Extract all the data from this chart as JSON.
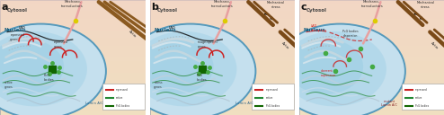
{
  "panels": [
    "a",
    "b",
    "c"
  ],
  "fig_bg": "#ffffff",
  "bg_outer": "#f0dfc0",
  "bg_cytosol_pink": "#f5d0c8",
  "bg_nucleus_light": "#c5e0ee",
  "bg_nucleus_inner": "#a8d4e8",
  "bg_nucleus_deep": "#90c8e0",
  "nucleus_border": "#5599bb",
  "lamin_border": "#4488aa",
  "actin_color": "#8B5a20",
  "actin_broken_color": "#7a4a18",
  "mechano_pink": "#e8a0a0",
  "mechano_line_color": "#cc8888",
  "yellow_dot": "#ddcc00",
  "lad_color": "#111111",
  "chromatin_gray": "#aabbcc",
  "repressed_red": "#cc2222",
  "active_green": "#228833",
  "pcg_green": "#116600",
  "lamin_text_color": "#336688",
  "lamin_text_color_c": "#882222",
  "stress_arrow_color": "#111111",
  "border_color": "#aaaaaa"
}
